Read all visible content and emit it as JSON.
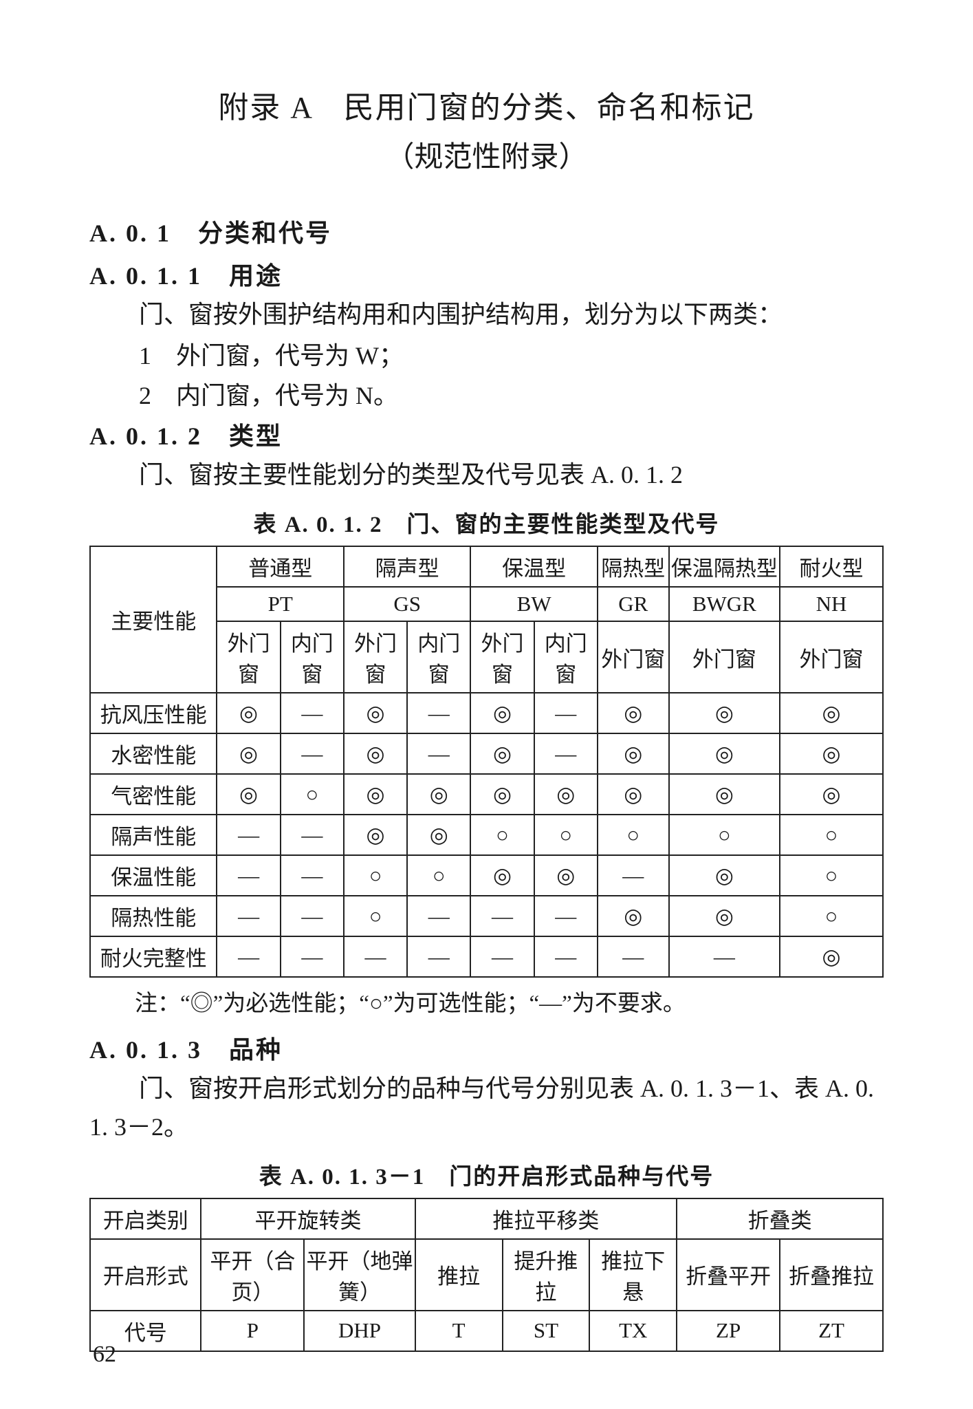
{
  "pageNumber": "62",
  "title": {
    "main": "附录 A　民用门窗的分类、命名和标记",
    "sub": "（规范性附录）"
  },
  "sections": {
    "a01": {
      "heading": "A. 0. 1　分类和代号"
    },
    "a011": {
      "heading": "A. 0. 1. 1　用途",
      "intro": "门、窗按外围护结构用和内围护结构用，划分为以下两类：",
      "item1": "1　外门窗，代号为 W；",
      "item2": "2　内门窗，代号为 N。"
    },
    "a012": {
      "heading": "A. 0. 1. 2　类型",
      "intro": "门、窗按主要性能划分的类型及代号见表 A. 0. 1. 2"
    },
    "a013": {
      "heading": "A. 0. 1. 3　品种",
      "intro": "　　门、窗按开启形式划分的品种与代号分别见表 A. 0. 1. 3－1、表 A. 0. 1. 3－2。"
    }
  },
  "table1": {
    "caption": "表 A. 0. 1. 2　门、窗的主要性能类型及代号",
    "rowHeader": "主要性能",
    "typeNames": [
      "普通型",
      "隔声型",
      "保温型",
      "隔热型",
      "保温隔热型",
      "耐火型"
    ],
    "typeCodes": [
      "PT",
      "GS",
      "BW",
      "GR",
      "BWGR",
      "NH"
    ],
    "subHeaders": [
      "外门窗",
      "内门窗",
      "外门窗",
      "内门窗",
      "外门窗",
      "内门窗",
      "外门窗",
      "外门窗",
      "外门窗"
    ],
    "rows": [
      {
        "label": "抗风压性能",
        "cells": [
          "◎",
          "—",
          "◎",
          "—",
          "◎",
          "—",
          "◎",
          "◎",
          "◎"
        ]
      },
      {
        "label": "水密性能",
        "cells": [
          "◎",
          "—",
          "◎",
          "—",
          "◎",
          "—",
          "◎",
          "◎",
          "◎"
        ]
      },
      {
        "label": "气密性能",
        "cells": [
          "◎",
          "○",
          "◎",
          "◎",
          "◎",
          "◎",
          "◎",
          "◎",
          "◎"
        ]
      },
      {
        "label": "隔声性能",
        "cells": [
          "—",
          "—",
          "◎",
          "◎",
          "○",
          "○",
          "○",
          "○",
          "○"
        ]
      },
      {
        "label": "保温性能",
        "cells": [
          "—",
          "—",
          "○",
          "○",
          "◎",
          "◎",
          "—",
          "◎",
          "○"
        ]
      },
      {
        "label": "隔热性能",
        "cells": [
          "—",
          "—",
          "○",
          "—",
          "—",
          "—",
          "◎",
          "◎",
          "○"
        ]
      },
      {
        "label": "耐火完整性",
        "cells": [
          "—",
          "—",
          "—",
          "—",
          "—",
          "—",
          "—",
          "—",
          "◎"
        ]
      }
    ],
    "note": "注：“◎”为必选性能；“○”为可选性能；“—”为不要求。"
  },
  "table2": {
    "caption": "表 A. 0. 1. 3－1　门的开启形式品种与代号",
    "row1": {
      "label": "开启类别",
      "cells": [
        "平开旋转类",
        "推拉平移类",
        "折叠类"
      ]
    },
    "row2": {
      "label": "开启形式",
      "cells": [
        "平开（合页）",
        "平开（地弹簧）",
        "推拉",
        "提升推拉",
        "推拉下悬",
        "折叠平开",
        "折叠推拉"
      ]
    },
    "row3": {
      "label": "代号",
      "cells": [
        "P",
        "DHP",
        "T",
        "ST",
        "TX",
        "ZP",
        "ZT"
      ]
    }
  }
}
